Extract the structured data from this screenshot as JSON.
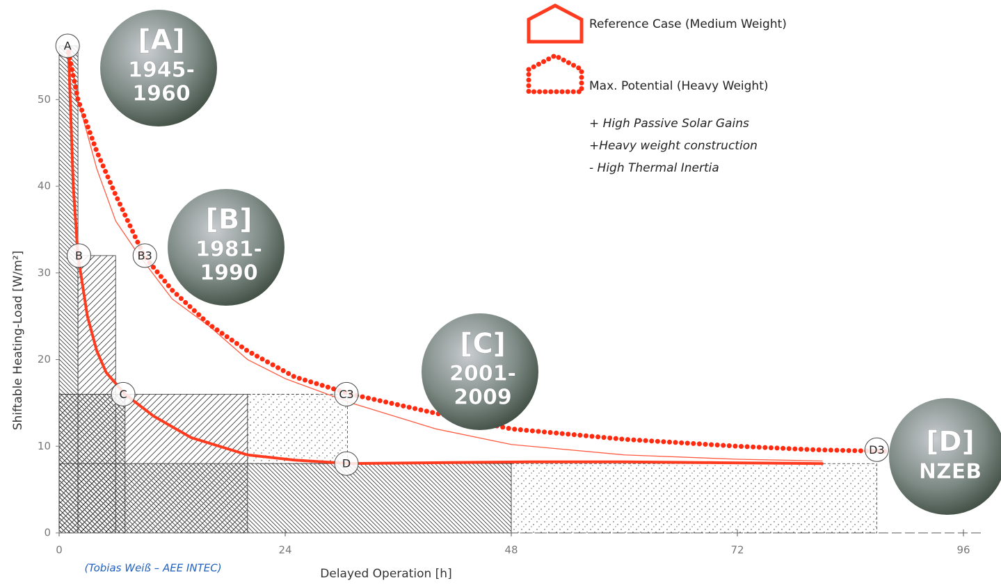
{
  "chart_data": {
    "type": "line",
    "xlabel": "Delayed Operation [h]",
    "ylabel": "Shiftable Heating-Load [W/m²]",
    "xlim": [
      0,
      96
    ],
    "xticks": [
      0,
      24,
      48,
      72,
      96
    ],
    "ylim": [
      0,
      56.2
    ],
    "yticks": [
      0,
      10,
      20,
      30,
      40,
      50
    ],
    "legend": "top-right",
    "series": [
      {
        "name": "Reference Case (Medium Weight)",
        "color": "#ff3b1f",
        "style": "solid",
        "x": [
          1,
          1.5,
          2,
          3,
          4,
          5,
          7,
          10,
          14,
          20,
          25,
          31,
          40,
          50,
          60,
          70,
          81
        ],
        "values": [
          55.5,
          40,
          32,
          25,
          21,
          18.5,
          16,
          13.5,
          11,
          9,
          8.4,
          8,
          8.1,
          8.2,
          8.2,
          8.1,
          8
        ]
      },
      {
        "color": "#ff5a40",
        "style": "thin",
        "x": [
          1,
          2,
          4,
          6,
          8.5,
          12,
          16,
          20,
          24,
          31,
          40,
          48,
          60,
          72,
          81
        ],
        "values": [
          55.5,
          50,
          42,
          36,
          32,
          27,
          23.8,
          20,
          17.8,
          15,
          12,
          10.2,
          9,
          8.5,
          8.3
        ]
      },
      {
        "name": "Max. Potential (Heavy Weight)",
        "color": "#ff2a10",
        "style": "dotted",
        "x": [
          1,
          2,
          4,
          6,
          9,
          12,
          16,
          20,
          25,
          31,
          40,
          48,
          60,
          72,
          80,
          88
        ],
        "values": [
          55.5,
          50,
          44,
          39,
          32,
          28,
          24,
          21,
          18,
          16,
          13.8,
          12,
          10.8,
          10,
          9.6,
          9.4
        ]
      }
    ],
    "regions": [
      {
        "x": [
          0,
          48
        ],
        "y": [
          0,
          8
        ],
        "hatch": "back"
      },
      {
        "x": [
          48,
          86.8
        ],
        "y": [
          0,
          8
        ],
        "hatch": "dots"
      },
      {
        "x": [
          20,
          30.6
        ],
        "y": [
          8,
          16
        ],
        "hatch": "dots"
      },
      {
        "x": [
          0,
          20
        ],
        "y": [
          0,
          16
        ],
        "hatch": "fwd"
      },
      {
        "x": [
          2,
          6
        ],
        "y": [
          0,
          32
        ],
        "hatch": "fwd"
      },
      {
        "x": [
          0,
          7
        ],
        "y": [
          0,
          16
        ],
        "hatch": "back"
      },
      {
        "x": [
          0,
          2
        ],
        "y": [
          0,
          56.2
        ],
        "hatch": "back"
      }
    ],
    "points": [
      {
        "label": "A",
        "x": 0.9,
        "y": 56.2
      },
      {
        "label": "B",
        "x": 2.1,
        "y": 32
      },
      {
        "label": "B3",
        "x": 9.1,
        "y": 32
      },
      {
        "label": "C",
        "x": 6.8,
        "y": 16
      },
      {
        "label": "C3",
        "x": 30.5,
        "y": 16
      },
      {
        "label": "D",
        "x": 30.5,
        "y": 8
      },
      {
        "label": "D3",
        "x": 86.8,
        "y": 9.6
      }
    ],
    "photos": [
      {
        "tag": "[A]",
        "years": [
          "1945-",
          "1960"
        ]
      },
      {
        "tag": "[B]",
        "years": [
          "1981-",
          "1990"
        ]
      },
      {
        "tag": "[C]",
        "years": [
          "2001-",
          "2009"
        ]
      },
      {
        "tag": "[D]",
        "years": [
          "NZEB"
        ]
      }
    ],
    "notes": [
      "+ High Passive Solar Gains",
      "+Heavy weight construction",
      "- High Thermal Inertia"
    ],
    "credit": "(Tobias Weiß – AEE INTEC)"
  }
}
